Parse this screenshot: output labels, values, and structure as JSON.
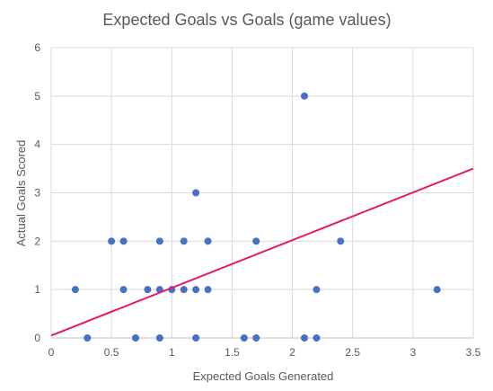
{
  "chart_data": {
    "type": "scatter",
    "title": "Expected Goals vs Goals (game values)",
    "xlabel": "Expected Goals Generated",
    "ylabel": "Actual Goals Scored",
    "xlim": [
      0,
      3.5
    ],
    "ylim": [
      0,
      6
    ],
    "x_ticks": [
      "0",
      "0.5",
      "1",
      "1.5",
      "2",
      "2.5",
      "3",
      "3.5"
    ],
    "y_ticks": [
      "0",
      "1",
      "2",
      "3",
      "4",
      "5",
      "6"
    ],
    "grid": true,
    "point_color": "#4472c4",
    "trend_color": "#e8196b",
    "trendline": {
      "x": [
        0,
        3.5
      ],
      "y": [
        0.05,
        3.5
      ]
    },
    "points": [
      {
        "x": 0.2,
        "y": 1
      },
      {
        "x": 0.3,
        "y": 0
      },
      {
        "x": 0.5,
        "y": 2
      },
      {
        "x": 0.6,
        "y": 2
      },
      {
        "x": 0.6,
        "y": 1
      },
      {
        "x": 0.7,
        "y": 0
      },
      {
        "x": 0.8,
        "y": 1
      },
      {
        "x": 0.9,
        "y": 2
      },
      {
        "x": 0.9,
        "y": 1
      },
      {
        "x": 0.9,
        "y": 0
      },
      {
        "x": 1.0,
        "y": 1
      },
      {
        "x": 1.1,
        "y": 2
      },
      {
        "x": 1.1,
        "y": 1
      },
      {
        "x": 1.2,
        "y": 3
      },
      {
        "x": 1.2,
        "y": 1
      },
      {
        "x": 1.2,
        "y": 0
      },
      {
        "x": 1.3,
        "y": 2
      },
      {
        "x": 1.3,
        "y": 1
      },
      {
        "x": 1.6,
        "y": 0
      },
      {
        "x": 1.7,
        "y": 2
      },
      {
        "x": 1.7,
        "y": 0
      },
      {
        "x": 2.1,
        "y": 5
      },
      {
        "x": 2.1,
        "y": 0
      },
      {
        "x": 2.2,
        "y": 1
      },
      {
        "x": 2.2,
        "y": 0
      },
      {
        "x": 2.4,
        "y": 2
      },
      {
        "x": 3.2,
        "y": 1
      }
    ]
  }
}
